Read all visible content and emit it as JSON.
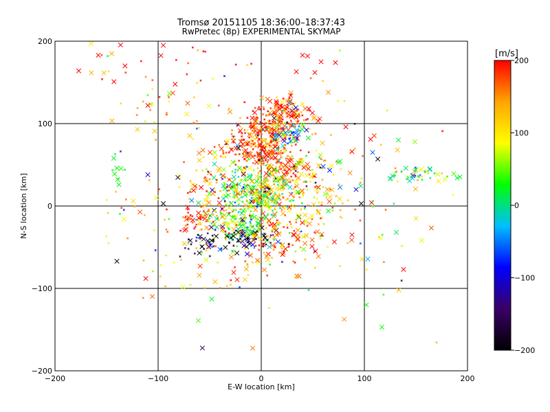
{
  "chart_data": {
    "type": "scatter",
    "title": "Tromsø 20151105 18:36:00–18:37:43",
    "subtitle": "RwPretec (8p) EXPERIMENTAL SKYMAP",
    "xlabel": "E-W location [km]",
    "ylabel": "N-S location [km]",
    "xlim": [
      -200,
      200
    ],
    "ylim": [
      -200,
      200
    ],
    "x_ticks": [
      -200,
      -100,
      0,
      100,
      200
    ],
    "y_ticks": [
      -200,
      -100,
      0,
      100,
      200
    ],
    "grid": true,
    "colorbar": {
      "label": "[m/s]",
      "range": [
        -200,
        200
      ],
      "ticks": [
        200,
        100,
        0,
        -100,
        -200
      ],
      "colors": [
        "#000000",
        "#3a0066",
        "#0000ff",
        "#00bfff",
        "#00ff00",
        "#ffff00",
        "#ffa500",
        "#ff0000"
      ]
    },
    "clusters": [
      {
        "center": [
          20,
          110
        ],
        "spread": [
          14,
          10
        ],
        "count": 160,
        "velocity": 185
      },
      {
        "center": [
          5,
          85
        ],
        "spread": [
          18,
          10
        ],
        "count": 150,
        "velocity": 170
      },
      {
        "center": [
          -5,
          65
        ],
        "spread": [
          16,
          10
        ],
        "count": 130,
        "velocity": 180
      },
      {
        "center": [
          28,
          85
        ],
        "spread": [
          8,
          6
        ],
        "count": 40,
        "velocity": -40
      },
      {
        "center": [
          20,
          45
        ],
        "spread": [
          18,
          12
        ],
        "count": 90,
        "velocity": 185
      },
      {
        "center": [
          -5,
          20
        ],
        "spread": [
          20,
          14
        ],
        "count": 200,
        "velocity": 40
      },
      {
        "center": [
          5,
          10
        ],
        "spread": [
          14,
          10
        ],
        "count": 100,
        "velocity": 120
      },
      {
        "center": [
          -20,
          -20
        ],
        "spread": [
          14,
          12
        ],
        "count": 140,
        "velocity": 30
      },
      {
        "center": [
          -15,
          -40
        ],
        "spread": [
          14,
          8
        ],
        "count": 70,
        "velocity": -190
      },
      {
        "center": [
          20,
          -35
        ],
        "spread": [
          20,
          15
        ],
        "count": 90,
        "velocity": 185
      },
      {
        "center": [
          -60,
          -15
        ],
        "spread": [
          12,
          10
        ],
        "count": 70,
        "velocity": 185
      },
      {
        "center": [
          -60,
          -45
        ],
        "spread": [
          10,
          8
        ],
        "count": 30,
        "velocity": -180
      },
      {
        "center": [
          -45,
          25
        ],
        "spread": [
          12,
          10
        ],
        "count": 40,
        "velocity": 180
      },
      {
        "center": [
          45,
          20
        ],
        "spread": [
          22,
          25
        ],
        "count": 90,
        "velocity": 110
      },
      {
        "center": [
          155,
          38
        ],
        "spread": [
          15,
          4
        ],
        "count": 45,
        "velocity": 20
      },
      {
        "center": [
          -150,
          175
        ],
        "spread": [
          20,
          12
        ],
        "count": 12,
        "velocity": 190
      },
      {
        "center": [
          -55,
          175
        ],
        "spread": [
          30,
          12
        ],
        "count": 15,
        "velocity": 190
      },
      {
        "center": [
          -40,
          -80
        ],
        "spread": [
          40,
          20
        ],
        "count": 30,
        "velocity": 150
      },
      {
        "center": [
          -80,
          120
        ],
        "spread": [
          30,
          20
        ],
        "count": 30,
        "velocity": 120
      },
      {
        "center": [
          0,
          0
        ],
        "spread": [
          75,
          65
        ],
        "count": 250,
        "velocity": 120
      },
      {
        "center": [
          -140,
          40
        ],
        "spread": [
          6,
          15
        ],
        "count": 6,
        "velocity": 10
      }
    ],
    "points": [
      {
        "x": -140,
        "y": -67,
        "v": -200
      },
      {
        "x": -112,
        "y": -88,
        "v": 200
      },
      {
        "x": -110,
        "y": 38,
        "v": -100
      },
      {
        "x": -95,
        "y": 195,
        "v": 200
      },
      {
        "x": -110,
        "y": 122,
        "v": 200
      },
      {
        "x": -95,
        "y": 3,
        "v": -200
      },
      {
        "x": -48,
        "y": -113,
        "v": 30
      },
      {
        "x": 113,
        "y": 57,
        "v": -200
      },
      {
        "x": 97,
        "y": 3,
        "v": -200
      },
      {
        "x": 92,
        "y": 20,
        "v": -100
      },
      {
        "x": 138,
        "y": -77,
        "v": 200
      },
      {
        "x": 131,
        "y": -32,
        "v": 10
      },
      {
        "x": 150,
        "y": -15,
        "v": 110
      },
      {
        "x": 133,
        "y": 80,
        "v": 20
      },
      {
        "x": 132,
        "y": 68,
        "v": 130
      },
      {
        "x": 108,
        "y": 65,
        "v": -60
      },
      {
        "x": 106,
        "y": 81,
        "v": 200
      },
      {
        "x": 88,
        "y": -35,
        "v": 200
      },
      {
        "x": 102,
        "y": -120,
        "v": 30
      },
      {
        "x": 117,
        "y": -147,
        "v": 30
      },
      {
        "x": 52,
        "y": 162,
        "v": 200
      },
      {
        "x": 45,
        "y": 182,
        "v": 200
      },
      {
        "x": 58,
        "y": 175,
        "v": 200
      },
      {
        "x": 72,
        "y": 174,
        "v": 200
      },
      {
        "x": 65,
        "y": 138,
        "v": 150
      },
      {
        "x": 88,
        "y": 66,
        "v": 200
      },
      {
        "x": 82,
        "y": 96,
        "v": 200
      },
      {
        "x": 40,
        "y": 183,
        "v": 200
      },
      {
        "x": 34,
        "y": 163,
        "v": 200
      },
      {
        "x": -165,
        "y": 197,
        "v": 100
      },
      {
        "x": -177,
        "y": 164,
        "v": 200
      },
      {
        "x": -120,
        "y": 93,
        "v": 120
      },
      {
        "x": -143,
        "y": 58,
        "v": 20
      },
      {
        "x": -140,
        "y": 46,
        "v": 20
      },
      {
        "x": -138,
        "y": 26,
        "v": 20
      },
      {
        "x": 190,
        "y": 34,
        "v": 10
      },
      {
        "x": 178,
        "y": 32,
        "v": 80
      },
      {
        "x": 172,
        "y": 30,
        "v": 100
      }
    ]
  }
}
